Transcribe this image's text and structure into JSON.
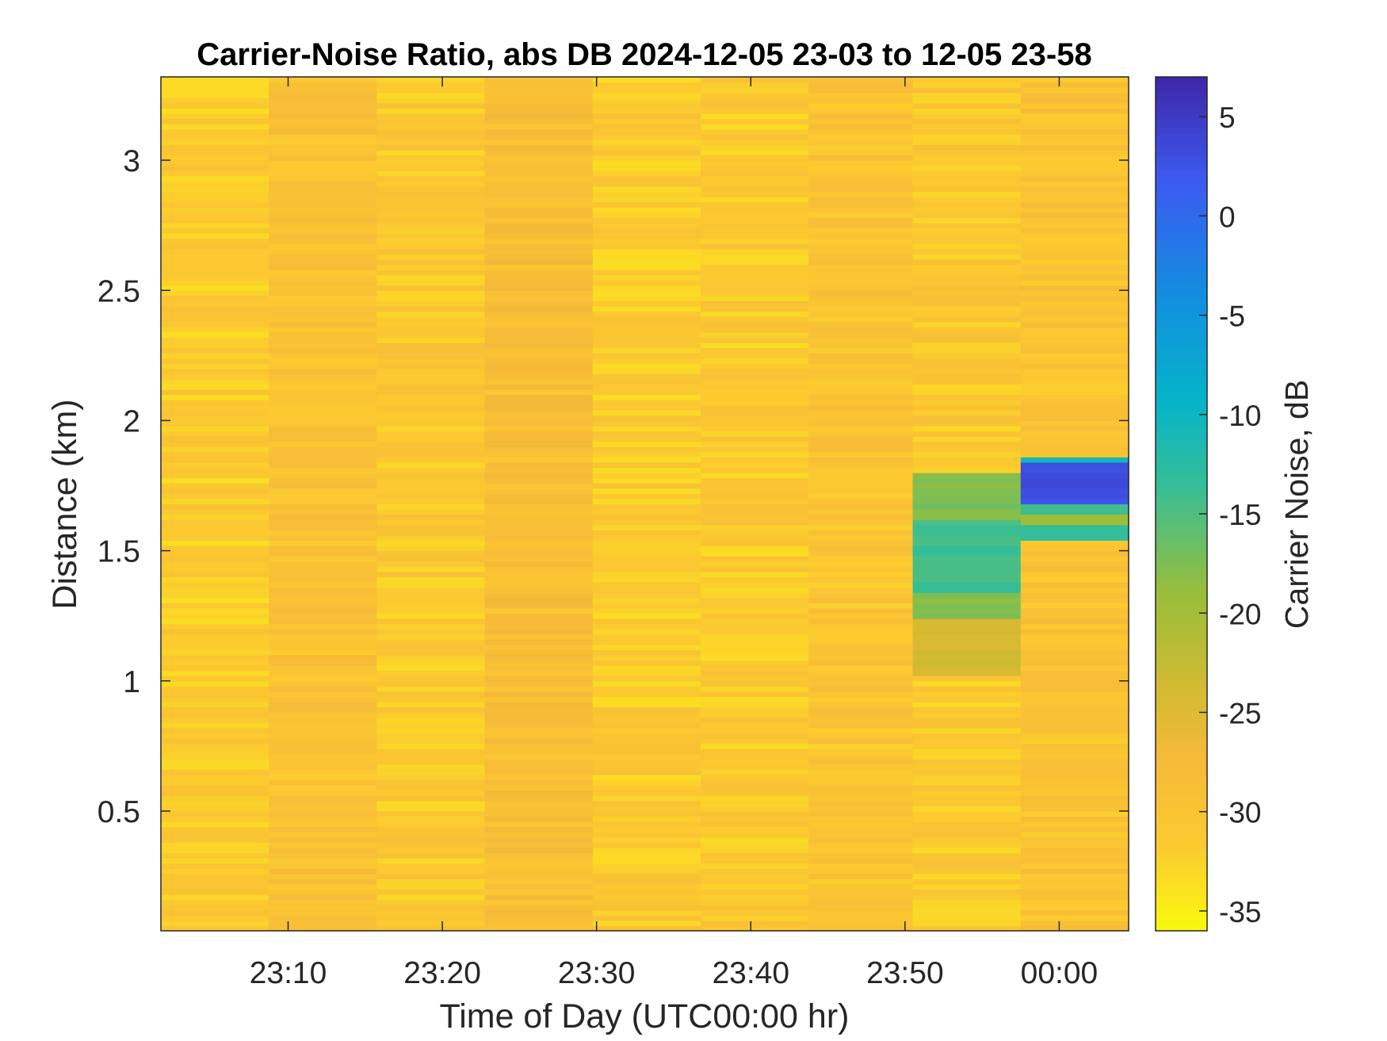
{
  "chart_data": {
    "type": "heatmap",
    "title": "Carrier-Noise Ratio, abs DB 2024-12-05 23-03 to 12-05 23-58",
    "xlabel": "Time of Day (UTC00:00 hr)",
    "ylabel": "Distance (km)",
    "colorbar_label": "Carrier Noise, dB",
    "xticks": [
      {
        "value": 10,
        "label": "23:10"
      },
      {
        "value": 20,
        "label": "23:20"
      },
      {
        "value": 30,
        "label": "23:30"
      },
      {
        "value": 40,
        "label": "23:40"
      },
      {
        "value": 50,
        "label": "23:50"
      },
      {
        "value": 60,
        "label": "00:00"
      }
    ],
    "yticks": [
      {
        "value": 0.5,
        "label": "0.5"
      },
      {
        "value": 1,
        "label": "1"
      },
      {
        "value": 1.5,
        "label": "1.5"
      },
      {
        "value": 2,
        "label": "2"
      },
      {
        "value": 2.5,
        "label": "2.5"
      },
      {
        "value": 3,
        "label": "3"
      }
    ],
    "colorbar_ticks": [
      {
        "value": 5,
        "label": "5"
      },
      {
        "value": 0,
        "label": "0"
      },
      {
        "value": -5,
        "label": "-5"
      },
      {
        "value": -10,
        "label": "-10"
      },
      {
        "value": -15,
        "label": "-15"
      },
      {
        "value": -20,
        "label": "-20"
      },
      {
        "value": -25,
        "label": "-25"
      },
      {
        "value": -30,
        "label": "-30"
      },
      {
        "value": -35,
        "label": "-35"
      }
    ],
    "xlim": [
      1.75,
      64.5
    ],
    "ylim": [
      0.04,
      3.32
    ],
    "clim": [
      -36,
      7
    ],
    "colormap": "parula-reversed",
    "scans": [
      {
        "start": 1.75,
        "end": 8.75,
        "base": -31.5
      },
      {
        "start": 8.75,
        "end": 15.75,
        "base": -29.8
      },
      {
        "start": 15.75,
        "end": 22.75,
        "base": -31.0
      },
      {
        "start": 22.75,
        "end": 29.75,
        "base": -28.8
      },
      {
        "start": 29.75,
        "end": 36.75,
        "base": -31.3
      },
      {
        "start": 36.75,
        "end": 43.75,
        "base": -31.2
      },
      {
        "start": 43.75,
        "end": 50.5,
        "base": -30.2
      },
      {
        "start": 50.5,
        "end": 57.5,
        "base": -31.0
      },
      {
        "start": 57.5,
        "end": 64.5,
        "base": -30.0
      }
    ],
    "features": [
      {
        "scan": 7,
        "from": 1.62,
        "to": 1.8,
        "value": -17.5
      },
      {
        "scan": 7,
        "from": 1.35,
        "to": 1.62,
        "value": -14.0
      },
      {
        "scan": 7,
        "from": 1.25,
        "to": 1.35,
        "value": -18.0
      },
      {
        "scan": 7,
        "from": 1.02,
        "to": 1.25,
        "value": -24.0
      },
      {
        "scan": 8,
        "from": 1.54,
        "to": 1.6,
        "value": -13.0
      },
      {
        "scan": 8,
        "from": 1.6,
        "to": 1.64,
        "value": -20.0
      },
      {
        "scan": 8,
        "from": 1.64,
        "to": 1.68,
        "value": -14.0
      },
      {
        "scan": 8,
        "from": 1.68,
        "to": 1.84,
        "value": 3.0
      },
      {
        "scan": 8,
        "from": 1.84,
        "to": 1.86,
        "value": -10.0
      }
    ]
  }
}
